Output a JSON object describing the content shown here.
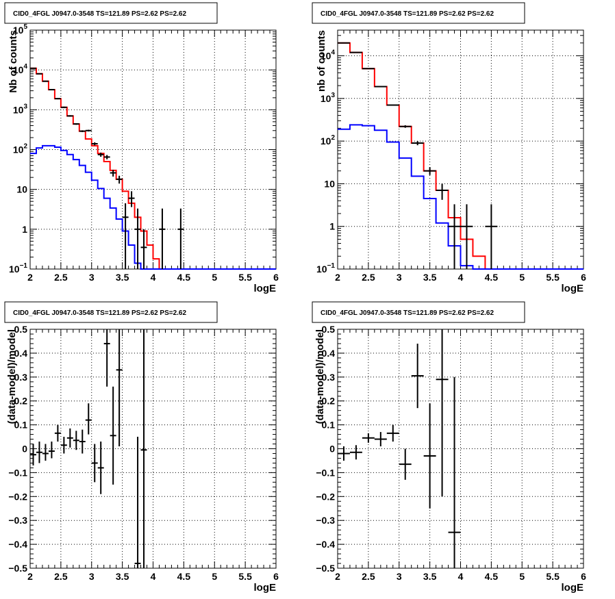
{
  "chart_data": [
    {
      "id": "top-left",
      "type": "histogram",
      "title": "CID0_4FGL J0947.0-3548 TS=121.89 PS=2.62 PS=2.62",
      "xlabel": "logE",
      "ylabel": "Nb of counts",
      "xlim": [
        2,
        6
      ],
      "ylim": [
        0.1,
        100000
      ],
      "yscale": "log",
      "grid": true,
      "xticks": [
        "2",
        "2.5",
        "3",
        "3.5",
        "4",
        "4.5",
        "5",
        "5.5",
        "6"
      ],
      "yticks": [
        {
          "value": 0.1,
          "label": "10",
          "sup": "−1"
        },
        {
          "value": 1,
          "label": "1",
          "sup": ""
        },
        {
          "value": 10,
          "label": "10",
          "sup": ""
        },
        {
          "value": 100,
          "label": "10",
          "sup": "2"
        },
        {
          "value": 1000,
          "label": "10",
          "sup": "3"
        },
        {
          "value": 10000,
          "label": "10",
          "sup": "4"
        },
        {
          "value": 100000,
          "label": "10",
          "sup": "5"
        }
      ],
      "series": [
        {
          "kind": "step",
          "color": "#ff0000",
          "edges": [
            2.0,
            2.1,
            2.2,
            2.3,
            2.4,
            2.5,
            2.6,
            2.7,
            2.8,
            2.9,
            3.0,
            3.1,
            3.2,
            3.3,
            3.4,
            3.5,
            3.6,
            3.7,
            3.8,
            3.9,
            4.0,
            4.1,
            4.2,
            4.3,
            4.4,
            4.5,
            4.6,
            4.7,
            4.8,
            4.9,
            5.0,
            5.1,
            5.2,
            5.3,
            5.4,
            5.5,
            5.6,
            5.7,
            5.8,
            5.9,
            6.0
          ],
          "values": [
            11000,
            8000,
            5200,
            3200,
            1900,
            1150,
            700,
            440,
            290,
            185,
            125,
            80,
            50,
            30,
            18,
            9,
            4.5,
            2,
            0.9,
            0.4,
            0.18,
            0.09,
            0.09,
            0.09,
            0.09,
            0.09,
            0.09,
            0.09,
            0.09,
            0.09,
            0.09,
            0.09,
            0.09,
            0.09,
            0.09,
            0.09,
            0.09,
            0.09,
            0.09,
            0.09
          ]
        },
        {
          "kind": "step",
          "color": "#0000ff",
          "edges": [
            2.0,
            2.1,
            2.2,
            2.3,
            2.4,
            2.5,
            2.6,
            2.7,
            2.8,
            2.9,
            3.0,
            3.1,
            3.2,
            3.3,
            3.4,
            3.5,
            3.6,
            3.7,
            3.8,
            3.9,
            4.0,
            4.1,
            4.2,
            4.3,
            4.4,
            4.5,
            4.6,
            4.7,
            4.8,
            4.9,
            5.0,
            5.1,
            5.2,
            5.3,
            5.4,
            5.5,
            5.6,
            5.7,
            5.8,
            5.9,
            6.0
          ],
          "values": [
            80,
            110,
            125,
            125,
            115,
            95,
            75,
            56,
            40,
            27,
            17,
            10.5,
            6,
            3.4,
            1.8,
            0.9,
            0.4,
            0.14,
            0.09,
            0.09,
            0.09,
            0.09,
            0.09,
            0.09,
            0.09,
            0.09,
            0.09,
            0.09,
            0.09,
            0.09,
            0.09,
            0.09,
            0.09,
            0.09,
            0.09,
            0.09,
            0.09,
            0.09,
            0.09,
            0.09
          ]
        },
        {
          "kind": "points",
          "color": "#000000",
          "x": [
            2.05,
            2.15,
            2.25,
            2.35,
            2.45,
            2.55,
            2.65,
            2.75,
            2.85,
            2.95,
            3.05,
            3.15,
            3.25,
            3.35,
            3.45,
            3.55,
            3.65,
            3.75,
            3.85,
            4.15,
            4.45
          ],
          "xerr": 0.05,
          "y": [
            11000,
            8000,
            5200,
            3200,
            1900,
            1150,
            700,
            440,
            290,
            300,
            140,
            75,
            65,
            26,
            18,
            2,
            6,
            1,
            0.35,
            1,
            1
          ],
          "ylo": [
            10800,
            7800,
            5050,
            3100,
            1830,
            1100,
            670,
            420,
            275,
            285,
            128,
            66,
            57,
            21,
            14,
            0.1,
            3.6,
            0.1,
            0.1,
            0.1,
            0.1
          ],
          "yhi": [
            11200,
            8200,
            5350,
            3300,
            1970,
            1200,
            730,
            460,
            305,
            315,
            152,
            84,
            73,
            31,
            22,
            4.5,
            9,
            3.3,
            1,
            3.3,
            3.3
          ]
        }
      ]
    },
    {
      "id": "top-right",
      "type": "histogram",
      "title": "CID0_4FGL J0947.0-3548 TS=121.89 PS=2.62 PS=2.62",
      "xlabel": "logE",
      "ylabel": "nb of counts",
      "xlim": [
        2,
        6
      ],
      "ylim": [
        0.1,
        40000
      ],
      "yscale": "log",
      "grid": true,
      "xticks": [
        "2",
        "2.5",
        "3",
        "3.5",
        "4",
        "4.5",
        "5",
        "5.5",
        "6"
      ],
      "yticks": [
        {
          "value": 0.1,
          "label": "10",
          "sup": "−1"
        },
        {
          "value": 1,
          "label": "1",
          "sup": ""
        },
        {
          "value": 10,
          "label": "10",
          "sup": ""
        },
        {
          "value": 100,
          "label": "10",
          "sup": "2"
        },
        {
          "value": 1000,
          "label": "10",
          "sup": "3"
        },
        {
          "value": 10000,
          "label": "10",
          "sup": "4"
        }
      ],
      "series": [
        {
          "kind": "step",
          "color": "#ff0000",
          "edges": [
            2.0,
            2.2,
            2.4,
            2.6,
            2.8,
            3.0,
            3.2,
            3.4,
            3.6,
            3.8,
            4.0,
            4.2,
            4.4,
            4.6,
            4.8,
            5.0,
            5.2,
            5.4,
            5.6,
            5.8,
            6.0
          ],
          "values": [
            20000,
            12000,
            5000,
            1900,
            700,
            220,
            90,
            20,
            7,
            1.6,
            0.5,
            0.2,
            0.09,
            0.09,
            0.09,
            0.09,
            0.09,
            0.09,
            0.09,
            0.09
          ]
        },
        {
          "kind": "step",
          "color": "#0000ff",
          "edges": [
            2.0,
            2.2,
            2.4,
            2.6,
            2.8,
            3.0,
            3.2,
            3.4,
            3.6,
            3.8,
            4.0,
            4.2,
            4.4,
            4.6,
            4.8,
            5.0,
            5.2,
            5.4,
            5.6,
            5.8,
            6.0
          ],
          "values": [
            190,
            240,
            230,
            180,
            95,
            40,
            15,
            4.5,
            1.2,
            0.35,
            0.12,
            0.09,
            0.09,
            0.09,
            0.09,
            0.09,
            0.09,
            0.09,
            0.09,
            0.09
          ]
        },
        {
          "kind": "points",
          "color": "#000000",
          "x": [
            2.1,
            2.3,
            2.5,
            2.7,
            2.9,
            3.1,
            3.3,
            3.5,
            3.7,
            3.9,
            4.1,
            4.5
          ],
          "xerr": 0.1,
          "y": [
            20000,
            12000,
            5000,
            1900,
            700,
            220,
            90,
            20,
            7,
            1,
            1,
            1
          ],
          "ylo": [
            19700,
            11800,
            4900,
            1850,
            675,
            205,
            80,
            16,
            4.2,
            0.1,
            0.1,
            0.1
          ],
          "yhi": [
            20300,
            12200,
            5100,
            1950,
            725,
            235,
            100,
            24.5,
            10,
            3.3,
            3.3,
            3.3
          ]
        }
      ]
    },
    {
      "id": "bottom-left",
      "type": "scatter",
      "title": "CID0_4FGL J0947.0-3548 TS=121.89 PS=2.62 PS=2.62",
      "xlabel": "logE",
      "ylabel": "(data-model)/model",
      "xlim": [
        2,
        6
      ],
      "ylim": [
        -0.5,
        0.5
      ],
      "yscale": "linear",
      "grid": true,
      "xticks": [
        "2",
        "2.5",
        "3",
        "3.5",
        "4",
        "4.5",
        "5",
        "5.5",
        "6"
      ],
      "yticks": [
        {
          "value": -0.5,
          "label": "−0.5"
        },
        {
          "value": -0.4,
          "label": "−0.4"
        },
        {
          "value": -0.3,
          "label": "−0.3"
        },
        {
          "value": -0.2,
          "label": "−0.2"
        },
        {
          "value": -0.1,
          "label": "−0.1"
        },
        {
          "value": 0,
          "label": "0"
        },
        {
          "value": 0.1,
          "label": "0.1"
        },
        {
          "value": 0.2,
          "label": "0.2"
        },
        {
          "value": 0.3,
          "label": "0.3"
        },
        {
          "value": 0.4,
          "label": "0.4"
        },
        {
          "value": 0.5,
          "label": "0.5"
        }
      ],
      "series": [
        {
          "kind": "points",
          "color": "#000000",
          "x": [
            2.05,
            2.15,
            2.25,
            2.35,
            2.45,
            2.55,
            2.65,
            2.75,
            2.85,
            2.95,
            3.05,
            3.15,
            3.25,
            3.35,
            3.45,
            3.75,
            3.85
          ],
          "xerr": 0.05,
          "y": [
            -0.025,
            -0.015,
            -0.02,
            -0.01,
            0.065,
            0.015,
            0.045,
            0.035,
            0.03,
            0.12,
            -0.06,
            -0.08,
            0.44,
            0.055,
            0.33,
            -0.48,
            -0.005
          ],
          "ylo": [
            -0.07,
            -0.06,
            -0.05,
            -0.04,
            0.03,
            -0.02,
            0.005,
            -0.005,
            -0.02,
            0.06,
            -0.14,
            -0.19,
            0.26,
            -0.15,
            0.01,
            -1.0,
            -1.0
          ],
          "yhi": [
            0.02,
            0.03,
            0.02,
            0.03,
            0.1,
            0.05,
            0.085,
            0.075,
            0.08,
            0.19,
            0.02,
            0.03,
            0.62,
            0.26,
            0.65,
            0.05,
            1.0
          ]
        }
      ]
    },
    {
      "id": "bottom-right",
      "type": "scatter",
      "title": "CID0_4FGL J0947.0-3548 TS=121.89 PS=2.62 PS=2.62",
      "xlabel": "logE",
      "ylabel": "(data-model)/model",
      "xlim": [
        2,
        6
      ],
      "ylim": [
        -0.5,
        0.5
      ],
      "yscale": "linear",
      "grid": true,
      "xticks": [
        "2",
        "2.5",
        "3",
        "3.5",
        "4",
        "4.5",
        "5",
        "5.5",
        "6"
      ],
      "yticks": [
        {
          "value": -0.5,
          "label": "−0.5"
        },
        {
          "value": -0.4,
          "label": "−0.4"
        },
        {
          "value": -0.3,
          "label": "−0.3"
        },
        {
          "value": -0.2,
          "label": "−0.2"
        },
        {
          "value": -0.1,
          "label": "−0.1"
        },
        {
          "value": 0,
          "label": "0"
        },
        {
          "value": 0.1,
          "label": "0.1"
        },
        {
          "value": 0.2,
          "label": "0.2"
        },
        {
          "value": 0.3,
          "label": "0.3"
        },
        {
          "value": 0.4,
          "label": "0.4"
        },
        {
          "value": 0.5,
          "label": "0.5"
        }
      ],
      "series": [
        {
          "kind": "points",
          "color": "#000000",
          "x": [
            2.1,
            2.3,
            2.5,
            2.7,
            2.9,
            3.1,
            3.3,
            3.5,
            3.7,
            3.9
          ],
          "xerr": 0.1,
          "y": [
            -0.02,
            -0.015,
            0.045,
            0.04,
            0.065,
            -0.065,
            0.305,
            -0.03,
            0.29,
            -0.35
          ],
          "ylo": [
            -0.05,
            -0.045,
            0.025,
            0.01,
            0.03,
            -0.13,
            0.17,
            -0.25,
            -0.2,
            -1.0
          ],
          "yhi": [
            0.01,
            0.015,
            0.065,
            0.07,
            0.1,
            0.0,
            0.44,
            0.19,
            0.5,
            0.3
          ]
        }
      ]
    }
  ]
}
